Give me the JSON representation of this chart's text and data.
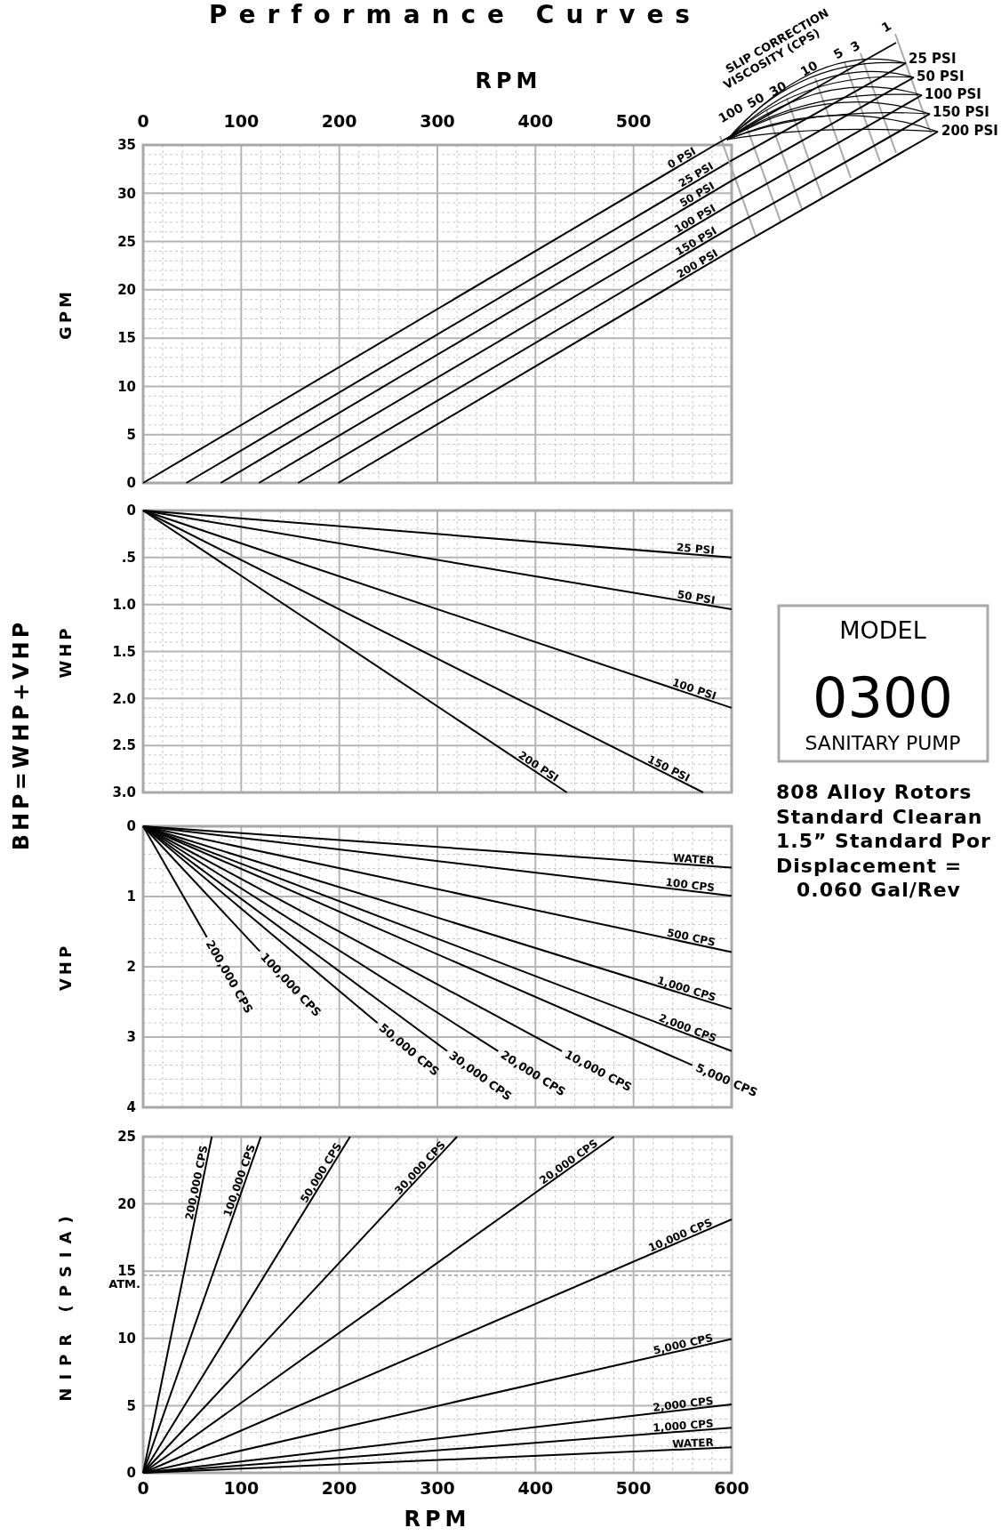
{
  "chart_data": [
    {
      "type": "line",
      "title": "Performance Curves",
      "xlabel": "RPM",
      "ylabel": "GPM",
      "xlim": [
        0,
        600
      ],
      "xticks": [
        0,
        100,
        200,
        300,
        400,
        500,
        {
          "value": 600,
          "label": null
        }
      ],
      "ylim": [
        0,
        35
      ],
      "yticks": [
        0,
        5,
        10,
        15,
        20,
        25,
        30,
        35
      ],
      "grid": true,
      "annotations": [
        "SLIP CORRECTION",
        "VISCOSITY (CPS)",
        "100",
        "50",
        "30",
        "10",
        "5",
        "3",
        "1",
        "25 PSI",
        "50 PSI",
        "100 PSI",
        "150 PSI",
        "200 PSI"
      ],
      "series": [
        {
          "name": "0 PSI",
          "color": "#000000",
          "x": [
            0,
            583
          ],
          "values": [
            0,
            35
          ]
        },
        {
          "name": "25 PSI",
          "color": "#000000",
          "x": [
            44,
            600
          ],
          "values": [
            0,
            33.4
          ]
        },
        {
          "name": "50 PSI",
          "color": "#000000",
          "x": [
            79,
            600
          ],
          "values": [
            0,
            31.3
          ]
        },
        {
          "name": "100 PSI",
          "color": "#000000",
          "x": [
            118,
            600
          ],
          "values": [
            0,
            28.9
          ]
        },
        {
          "name": "150 PSI",
          "color": "#000000",
          "x": [
            158,
            600
          ],
          "values": [
            0,
            26.5
          ]
        },
        {
          "name": "200 PSI",
          "color": "#000000",
          "x": [
            199,
            600
          ],
          "values": [
            0,
            24.1
          ]
        }
      ]
    },
    {
      "type": "line",
      "ylabel": "WHP",
      "xlim": [
        0,
        600
      ],
      "xticks": [
        0,
        100,
        200,
        300,
        400,
        500,
        600
      ],
      "ylim": [
        3,
        0
      ],
      "yticks": [
        0,
        {
          "value": 0.5,
          "label": ".5"
        },
        {
          "value": 1,
          "label": "1.0"
        },
        {
          "value": 1.5,
          "label": "1.5"
        },
        {
          "value": 2,
          "label": "2.0"
        },
        {
          "value": 2.5,
          "label": "2.5"
        },
        {
          "value": 3,
          "label": "3.0"
        }
      ],
      "grid": true,
      "tick_labels": "y",
      "annotations": [
        "BHP=WHP+VHP"
      ],
      "series": [
        {
          "name": "25 PSI",
          "color": "#000000",
          "x": [
            0,
            600
          ],
          "values": [
            0,
            0.5
          ]
        },
        {
          "name": "50 PSI",
          "color": "#000000",
          "x": [
            0,
            600
          ],
          "values": [
            0,
            1.05
          ]
        },
        {
          "name": "100 PSI",
          "color": "#000000",
          "x": [
            0,
            600
          ],
          "values": [
            0,
            2.1
          ]
        },
        {
          "name": "150 PSI",
          "color": "#000000",
          "x": [
            0,
            571
          ],
          "values": [
            0,
            3
          ]
        },
        {
          "name": "200 PSI",
          "color": "#000000",
          "x": [
            0,
            432
          ],
          "values": [
            0,
            3
          ]
        }
      ]
    },
    {
      "type": "line",
      "ylabel": "VHP",
      "xlim": [
        0,
        600
      ],
      "xticks": [
        0,
        100,
        200,
        300,
        400,
        500,
        600
      ],
      "ylim": [
        4,
        0
      ],
      "yticks": [
        0,
        1,
        2,
        3,
        4
      ],
      "grid": true,
      "tick_labels": "y",
      "series": [
        {
          "name": "WATER",
          "color": "#000000",
          "x": [
            0,
            600
          ],
          "values": [
            0,
            0.59
          ]
        },
        {
          "name": "100 CPS",
          "color": "#000000",
          "x": [
            0,
            600
          ],
          "values": [
            0,
            0.99
          ]
        },
        {
          "name": "500 CPS",
          "color": "#000000",
          "x": [
            0,
            600
          ],
          "values": [
            0,
            1.79
          ]
        },
        {
          "name": "1,000 CPS",
          "color": "#000000",
          "x": [
            0,
            600
          ],
          "values": [
            0,
            2.6
          ]
        },
        {
          "name": "2,000 CPS",
          "color": "#000000",
          "x": [
            0,
            600
          ],
          "values": [
            0,
            3.2
          ]
        },
        {
          "name": "5,000 CPS",
          "color": "#000000",
          "x": [
            0,
            560
          ],
          "values": [
            0,
            3.4
          ]
        },
        {
          "name": "10,000 CPS",
          "color": "#000000",
          "x": [
            0,
            427
          ],
          "values": [
            0,
            3.2
          ]
        },
        {
          "name": "20,000 CPS",
          "color": "#000000",
          "x": [
            0,
            362
          ],
          "values": [
            0,
            3.2
          ]
        },
        {
          "name": "30,000 CPS",
          "color": "#000000",
          "x": [
            0,
            310
          ],
          "values": [
            0,
            3.2
          ]
        },
        {
          "name": "50,000 CPS",
          "color": "#000000",
          "x": [
            0,
            239
          ],
          "values": [
            0,
            2.8
          ]
        },
        {
          "name": "100,000 CPS",
          "color": "#000000",
          "x": [
            0,
            119
          ],
          "values": [
            0,
            1.78
          ]
        },
        {
          "name": "200,000 CPS",
          "color": "#000000",
          "x": [
            0,
            65
          ],
          "values": [
            0,
            1.58
          ]
        }
      ]
    },
    {
      "type": "line",
      "xlabel": "RPM",
      "ylabel": "NIPR (PSIA)",
      "xlim": [
        0,
        600
      ],
      "xticks": [
        0,
        100,
        200,
        300,
        400,
        500,
        600
      ],
      "ylim": [
        0,
        25
      ],
      "yticks": [
        0,
        5,
        10,
        15,
        20,
        25
      ],
      "grid": true,
      "ref_lines": [
        {
          "axis": "y",
          "value": 14.7,
          "label": "ATM.",
          "color": "#a0a0a0",
          "line_style": "dashed"
        }
      ],
      "series": [
        {
          "name": "WATER",
          "color": "#000000",
          "x": [
            0,
            600
          ],
          "values": [
            0,
            1.9
          ]
        },
        {
          "name": "1,000 CPS",
          "color": "#000000",
          "x": [
            0,
            600
          ],
          "values": [
            0,
            3.35
          ]
        },
        {
          "name": "2,000 CPS",
          "color": "#000000",
          "x": [
            0,
            600
          ],
          "values": [
            0,
            5.1
          ]
        },
        {
          "name": "5,000 CPS",
          "color": "#000000",
          "x": [
            0,
            600
          ],
          "values": [
            0,
            9.95
          ]
        },
        {
          "name": "10,000 CPS",
          "color": "#000000",
          "x": [
            0,
            600
          ],
          "values": [
            0,
            18.85
          ]
        },
        {
          "name": "20,000 CPS",
          "color": "#000000",
          "x": [
            0,
            480
          ],
          "values": [
            0,
            25
          ]
        },
        {
          "name": "30,000 CPS",
          "color": "#000000",
          "x": [
            0,
            320
          ],
          "values": [
            0,
            25
          ]
        },
        {
          "name": "50,000 CPS",
          "color": "#000000",
          "x": [
            0,
            211
          ],
          "values": [
            0,
            25
          ]
        },
        {
          "name": "100,000 CPS",
          "color": "#000000",
          "x": [
            0,
            120
          ],
          "values": [
            0,
            25
          ]
        },
        {
          "name": "200,000 CPS",
          "color": "#000000",
          "x": [
            0,
            70
          ],
          "values": [
            0,
            25
          ]
        }
      ]
    },
    {
      "type": "other",
      "title": "MODEL",
      "annotations": [
        "0300",
        "SANITARY PUMP",
        "808 Alloy Rotors",
        "Standard Clearan",
        "1.5” Standard Por",
        "Displacement =",
        "0.060 Gal/Rev"
      ]
    }
  ]
}
